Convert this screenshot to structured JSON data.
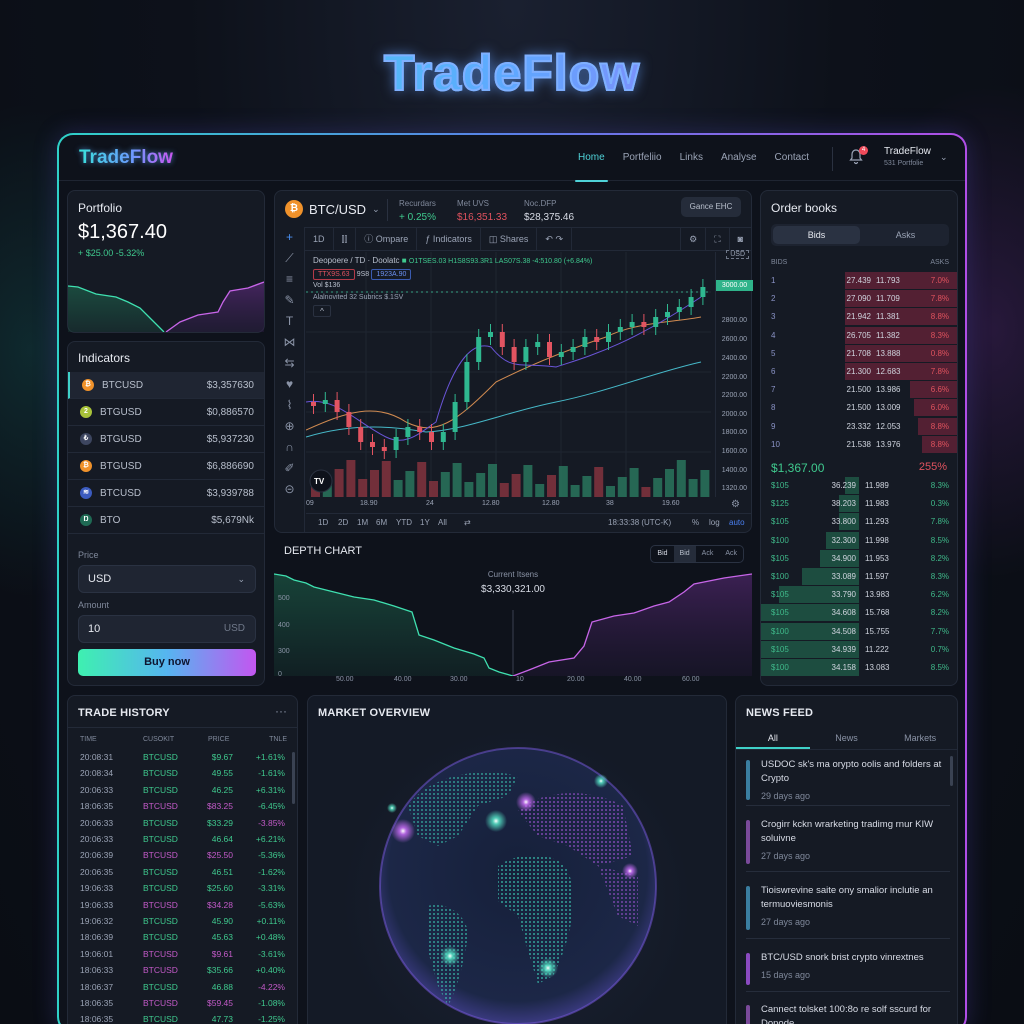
{
  "hero_title": "TradeFlow",
  "nav": {
    "logo": "TradeFlow",
    "links": [
      "Home",
      "Portfeliio",
      "Links",
      "Analyse",
      "Contact"
    ],
    "active": "Home",
    "notification_count": "4",
    "user_name": "TradeFlow",
    "user_sub": "531 Portfolie"
  },
  "portfolio": {
    "title": "Portfolio",
    "value": "$1,367.40",
    "change": "+ $25.00 -5.32%"
  },
  "indicators": {
    "title": "Indicators",
    "items": [
      {
        "symbol": "BTCUSD",
        "value": "$3,357630",
        "color": "#f0922b",
        "glyph": "₿"
      },
      {
        "symbol": "BTGUSD",
        "value": "$0,886570",
        "color": "#a8c23a",
        "glyph": "2"
      },
      {
        "symbol": "BTGUSD",
        "value": "$5,937230",
        "color": "#3d4660",
        "glyph": "₺"
      },
      {
        "symbol": "BTGUSD",
        "value": "$6,886690",
        "color": "#f0922b",
        "glyph": "₿"
      },
      {
        "symbol": "BTCUSD",
        "value": "$3,939788",
        "color": "#3b5bbf",
        "glyph": "≋"
      },
      {
        "symbol": "BTO",
        "value": "$5,679Nk",
        "color": "#1f6a54",
        "glyph": "Ŋ"
      }
    ]
  },
  "order_form": {
    "price_label": "Price",
    "price_value": "USD",
    "amount_label": "Amount",
    "amount_value": "10",
    "amount_unit": "USD",
    "buy_label": "Buy now"
  },
  "chart": {
    "pair": "BTC/USD",
    "stats": [
      {
        "label": "Recurdars",
        "value": "+ 0.25%",
        "color": "#3fc98e"
      },
      {
        "label": "Met UVS",
        "value": "$16,351.33",
        "color": "#e0525e"
      },
      {
        "label": "Noc.DFP",
        "value": "$28,375.46",
        "color": "#d8dce6"
      }
    ],
    "mode_button": "Gance EHC",
    "toolbar": [
      "1D",
      "Ompare",
      "Indicators",
      "Shares"
    ],
    "legend_title": "Deopoere / TD · Doolatc",
    "ohlc": "O1TSES.03  H1S8S93.3R1  LAS07S.38  -4:510.80 (+6.84%)",
    "tag_red": "TTX9S.63",
    "tag_mid": "9S8",
    "tag_blue": "1923A.90",
    "vol": "Vol  $136",
    "indicator_line": "Alalnovited 32 Subrics  $.1SV",
    "currency_badge": "USD",
    "price_tag": "3000.00",
    "y_ticks": [
      "3100.00",
      "2800.00",
      "2600.00",
      "2400.00",
      "2200.00",
      "2200.00",
      "2000.00",
      "1800.00",
      "1600.00",
      "1400.00",
      "1330.00",
      "1320.00"
    ],
    "x_ticks": [
      "09",
      "18.90",
      "24",
      "12.80",
      "12.80",
      "38",
      "19.60"
    ],
    "ranges": [
      "1D",
      "2D",
      "1M",
      "6M",
      "YTD",
      "1Y",
      "All"
    ],
    "time": "18:33:38 (UTC-K)",
    "scale_opts": [
      "%",
      "log",
      "auto"
    ]
  },
  "depth": {
    "title": "DEPTH CHART",
    "toggles": [
      "Bid",
      "Bid",
      "Ack",
      "Ack"
    ],
    "current_label": "Current Itsens",
    "current_value": "$3,330,321.00",
    "y_ticks": [
      "500",
      "400",
      "300",
      "0"
    ],
    "x_ticks": [
      "50.00",
      "40.00",
      "30.00",
      "10",
      "20.00",
      "40.00",
      "60.00"
    ]
  },
  "order_book": {
    "title": "Order books",
    "tabs": [
      "Bids",
      "Asks"
    ],
    "col_left": "BIDS",
    "col_right": "ASKS",
    "asks": [
      {
        "n": "1",
        "bid": "27.439",
        "ask": "11.793",
        "pct": "7.0%",
        "w": 0.57
      },
      {
        "n": "2",
        "bid": "27.090",
        "ask": "11.709",
        "pct": "7.8%",
        "w": 0.57
      },
      {
        "n": "3",
        "bid": "21.942",
        "ask": "11.381",
        "pct": "8.8%",
        "w": 0.57
      },
      {
        "n": "4",
        "bid": "26.705",
        "ask": "11.382",
        "pct": "8.3%",
        "w": 0.57
      },
      {
        "n": "5",
        "bid": "21.708",
        "ask": "13.888",
        "pct": "0.8%",
        "w": 0.57
      },
      {
        "n": "6",
        "bid": "21.300",
        "ask": "12.683",
        "pct": "7.8%",
        "w": 0.57
      },
      {
        "n": "7",
        "bid": "21.500",
        "ask": "13.986",
        "pct": "6.6%",
        "w": 0.24
      },
      {
        "n": "8",
        "bid": "21.500",
        "ask": "13.009",
        "pct": "6.0%",
        "w": 0.22
      },
      {
        "n": "9",
        "bid": "23.332",
        "ask": "12.053",
        "pct": "8.8%",
        "w": 0.2
      },
      {
        "n": "10",
        "bid": "21.538",
        "ask": "13.976",
        "pct": "8.8%",
        "w": 0.18
      }
    ],
    "mid_price": "$1,367.00",
    "mid_pct": "255%",
    "bids": [
      {
        "n": "$105",
        "bid": "36.239",
        "ask": "11.989",
        "pct": "8.3%",
        "w": 0.07
      },
      {
        "n": "$125",
        "bid": "38.203",
        "ask": "11.983",
        "pct": "0.3%",
        "w": 0.1
      },
      {
        "n": "$105",
        "bid": "33.800",
        "ask": "11.293",
        "pct": "7.8%",
        "w": 0.1
      },
      {
        "n": "$100",
        "bid": "32.300",
        "ask": "11.998",
        "pct": "8.5%",
        "w": 0.17
      },
      {
        "n": "$105",
        "bid": "34.900",
        "ask": "11.953",
        "pct": "8.2%",
        "w": 0.2
      },
      {
        "n": "$100",
        "bid": "33.089",
        "ask": "11.597",
        "pct": "8.3%",
        "w": 0.29
      },
      {
        "n": "$105",
        "bid": "33.790",
        "ask": "13.983",
        "pct": "6.2%",
        "w": 0.41
      },
      {
        "n": "$105",
        "bid": "34.608",
        "ask": "15.768",
        "pct": "8.2%",
        "w": 0.5
      },
      {
        "n": "$100",
        "bid": "34.508",
        "ask": "15.755",
        "pct": "7.7%",
        "w": 0.5
      },
      {
        "n": "$105",
        "bid": "34.939",
        "ask": "11.222",
        "pct": "0.7%",
        "w": 0.5
      },
      {
        "n": "$100",
        "bid": "34.158",
        "ask": "13.083",
        "pct": "8.5%",
        "w": 0.5
      }
    ]
  },
  "trade_history": {
    "title": "TRADE HISTORY",
    "menu": "···",
    "columns": [
      "TIME",
      "CUSOKIT",
      "PRICE",
      "TNLE"
    ],
    "rows": [
      {
        "time": "20:08:31",
        "sym": "BTCUSD",
        "price": "$9.67",
        "chg": "+1.61%",
        "side": "buy"
      },
      {
        "time": "20:08:34",
        "sym": "BTCUSD",
        "price": "49.55",
        "chg": "-1.61%",
        "side": "buy"
      },
      {
        "time": "20:06:33",
        "sym": "BTCUSD",
        "price": "46.25",
        "chg": "+6.31%",
        "side": "buy"
      },
      {
        "time": "18:06:35",
        "sym": "BTCUSD",
        "price": "$83.25",
        "chg": "-6.45%",
        "side": "sell"
      },
      {
        "time": "20:06:33",
        "sym": "BTCUSD",
        "price": "$33.29",
        "chg": "-3.85%",
        "side": "buy2"
      },
      {
        "time": "20:06:33",
        "sym": "BTCUSD",
        "price": "46.64",
        "chg": "+6.21%",
        "side": "buy"
      },
      {
        "time": "20:06:39",
        "sym": "BTCUSD",
        "price": "$25.50",
        "chg": "-5.36%",
        "side": "sell"
      },
      {
        "time": "20:06:35",
        "sym": "BTCUSD",
        "price": "46.51",
        "chg": "-1.62%",
        "side": "buy"
      },
      {
        "time": "19:06:33",
        "sym": "BTCUSD",
        "price": "$25.60",
        "chg": "-3.31%",
        "side": "buy"
      },
      {
        "time": "19:06:33",
        "sym": "BTCUSD",
        "price": "$34.28",
        "chg": "-5.63%",
        "side": "sell"
      },
      {
        "time": "19:06:32",
        "sym": "BTCUSD",
        "price": "45.90",
        "chg": "+0.11%",
        "side": "buy"
      },
      {
        "time": "18:06:39",
        "sym": "BTCUSD",
        "price": "45.63",
        "chg": "+0.48%",
        "side": "buy"
      },
      {
        "time": "19:06:01",
        "sym": "BTCUSD",
        "price": "$9.61",
        "chg": "-3.61%",
        "side": "sell"
      },
      {
        "time": "18:06:33",
        "sym": "BTCUSD",
        "price": "$35.66",
        "chg": "+0.40%",
        "side": "sell2"
      },
      {
        "time": "18:06:37",
        "sym": "BTCUSD",
        "price": "46.88",
        "chg": "-4.22%",
        "side": "buy3"
      },
      {
        "time": "18:06:35",
        "sym": "BTCUSD",
        "price": "$59.45",
        "chg": "-1.08%",
        "side": "sell3"
      },
      {
        "time": "18:06:35",
        "sym": "BTCUSD",
        "price": "47.73",
        "chg": "-1.25%",
        "side": "buy"
      }
    ]
  },
  "market_overview": {
    "title": "MARKET OVERVIEW"
  },
  "news": {
    "title": "NEWS FEED",
    "tabs": [
      "All",
      "News",
      "Markets"
    ],
    "items": [
      {
        "headline": "USDOC sk's ma orypto oolis and folders at Crypto",
        "age": "29 days ago",
        "color": "#3a7ea0"
      },
      {
        "headline": "Crogirr kckn wrarketing tradimg rnur KIW soluivne",
        "age": "27 days ago",
        "color": "#7a4a9a"
      },
      {
        "headline": "Tioiswrevine saite ony smalior inclutie an termuoviesmonis",
        "age": "27 days ago",
        "color": "#3a7ea0"
      },
      {
        "headline": "BTC/USD snork brist crypto vinrextnes",
        "age": "15 days ago",
        "color": "#8a4ac0"
      },
      {
        "headline": "Cannect tolsket 100:8o re solf sscurd for Donode",
        "age": "",
        "color": "#7a4a9a"
      }
    ]
  }
}
